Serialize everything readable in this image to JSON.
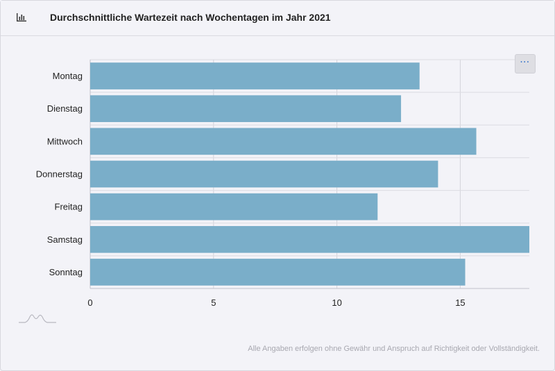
{
  "header": {
    "title": "Durchschnittliche Wartezeit nach Wochentagen im Jahr 2021",
    "icon": "bar-chart-icon"
  },
  "menu": {
    "label": "···"
  },
  "footer": {
    "note": "Alle Angaben erfolgen ohne Gewähr und Anspruch auf Richtigkeit oder Vollständigkeit."
  },
  "chart_data": {
    "type": "bar",
    "orientation": "horizontal",
    "categories": [
      "Montag",
      "Dienstag",
      "Mittwoch",
      "Donnerstag",
      "Freitag",
      "Samstag",
      "Sonntag"
    ],
    "values": [
      13.35,
      12.6,
      15.65,
      14.1,
      11.65,
      17.8,
      15.2
    ],
    "xlim": [
      0,
      17.8
    ],
    "xticks": [
      0,
      5,
      10,
      15
    ],
    "grid": true,
    "bar_color": "#7aaec9",
    "title": "",
    "xlabel": "",
    "ylabel": ""
  }
}
